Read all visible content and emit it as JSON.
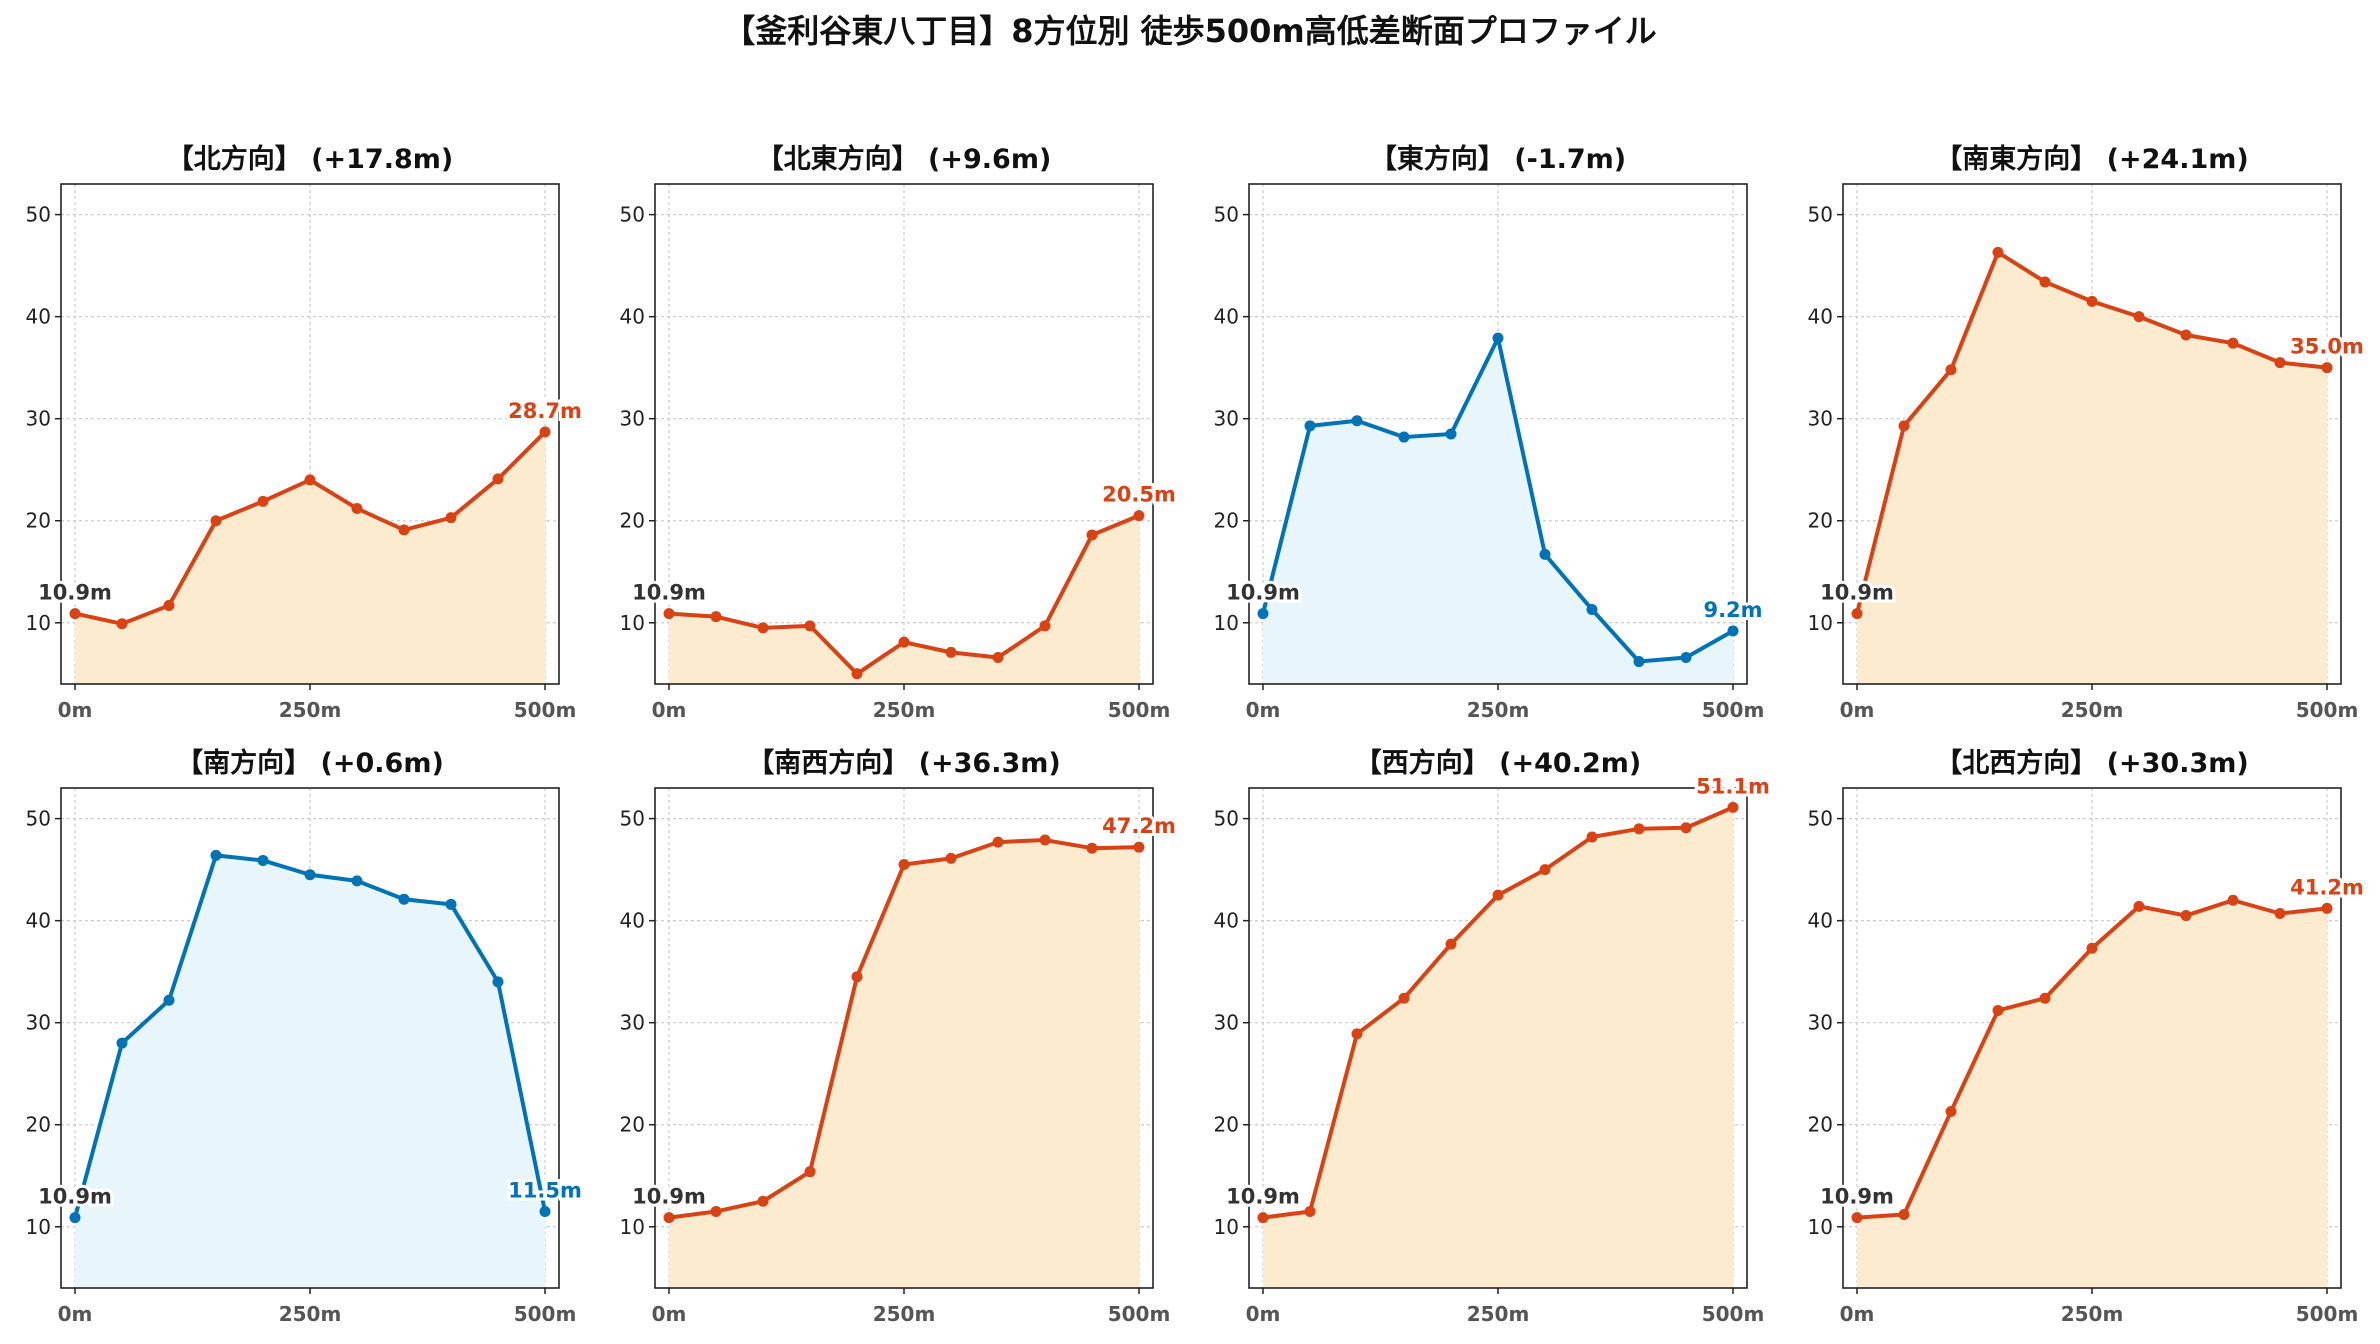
{
  "title": "【釜利谷東八丁目】8方位別 徒歩500m高低差断面プロファイル",
  "colors": {
    "up_line": "#d84315",
    "up_fill": "#fdebd0",
    "down_line": "#0073b7",
    "down_fill": "#e8f6fc",
    "start_label": "#333333",
    "grid": "#cccccc"
  },
  "chart_data": [
    {
      "type": "area",
      "title": "【北方向】 (+17.8m)",
      "trend": "up",
      "x": [
        0,
        50,
        100,
        150,
        200,
        250,
        300,
        350,
        400,
        450,
        500
      ],
      "values": [
        10.9,
        9.9,
        11.7,
        20.0,
        21.9,
        24.0,
        21.2,
        19.1,
        20.3,
        24.1,
        28.7
      ],
      "xticks": [
        "0m",
        "250m",
        "500m"
      ],
      "yticks": [
        "10",
        "20",
        "30",
        "40",
        "50"
      ],
      "start_label": "10.9m",
      "end_label": "28.7m",
      "xlim": [
        0,
        500
      ],
      "ylim": [
        4,
        53
      ],
      "grid": true
    },
    {
      "type": "area",
      "title": "【北東方向】 (+9.6m)",
      "trend": "up",
      "x": [
        0,
        50,
        100,
        150,
        200,
        250,
        300,
        350,
        400,
        450,
        500
      ],
      "values": [
        10.9,
        10.6,
        9.5,
        9.7,
        5.0,
        8.1,
        7.1,
        6.6,
        9.7,
        18.6,
        20.5
      ],
      "xticks": [
        "0m",
        "250m",
        "500m"
      ],
      "yticks": [
        "10",
        "20",
        "30",
        "40",
        "50"
      ],
      "start_label": "10.9m",
      "end_label": "20.5m",
      "xlim": [
        0,
        500
      ],
      "ylim": [
        4,
        53
      ],
      "grid": true
    },
    {
      "type": "area",
      "title": "【東方向】 (-1.7m)",
      "trend": "down",
      "x": [
        0,
        50,
        100,
        150,
        200,
        250,
        300,
        350,
        400,
        450,
        500
      ],
      "values": [
        10.9,
        29.3,
        29.8,
        28.2,
        28.5,
        37.9,
        16.7,
        11.3,
        6.2,
        6.6,
        9.2
      ],
      "xticks": [
        "0m",
        "250m",
        "500m"
      ],
      "yticks": [
        "10",
        "20",
        "30",
        "40",
        "50"
      ],
      "start_label": "10.9m",
      "end_label": "9.2m",
      "xlim": [
        0,
        500
      ],
      "ylim": [
        4,
        53
      ],
      "grid": true
    },
    {
      "type": "area",
      "title": "【南東方向】 (+24.1m)",
      "trend": "up",
      "x": [
        0,
        50,
        100,
        150,
        200,
        250,
        300,
        350,
        400,
        450,
        500
      ],
      "values": [
        10.9,
        29.3,
        34.8,
        46.3,
        43.4,
        41.5,
        40.0,
        38.2,
        37.4,
        35.5,
        35.0
      ],
      "xticks": [
        "0m",
        "250m",
        "500m"
      ],
      "yticks": [
        "10",
        "20",
        "30",
        "40",
        "50"
      ],
      "start_label": "10.9m",
      "end_label": "35.0m",
      "xlim": [
        0,
        500
      ],
      "ylim": [
        4,
        53
      ],
      "grid": true
    },
    {
      "type": "area",
      "title": "【南方向】 (+0.6m)",
      "trend": "down",
      "x": [
        0,
        50,
        100,
        150,
        200,
        250,
        300,
        350,
        400,
        450,
        500
      ],
      "values": [
        10.9,
        28.0,
        32.2,
        46.4,
        45.9,
        44.5,
        43.9,
        42.1,
        41.6,
        34.0,
        11.5
      ],
      "xticks": [
        "0m",
        "250m",
        "500m"
      ],
      "yticks": [
        "10",
        "20",
        "30",
        "40",
        "50"
      ],
      "start_label": "10.9m",
      "end_label": "11.5m",
      "xlim": [
        0,
        500
      ],
      "ylim": [
        4,
        53
      ],
      "grid": true
    },
    {
      "type": "area",
      "title": "【南西方向】 (+36.3m)",
      "trend": "up",
      "x": [
        0,
        50,
        100,
        150,
        200,
        250,
        300,
        350,
        400,
        450,
        500
      ],
      "values": [
        10.9,
        11.5,
        12.5,
        15.4,
        34.5,
        45.5,
        46.1,
        47.7,
        47.9,
        47.1,
        47.2
      ],
      "xticks": [
        "0m",
        "250m",
        "500m"
      ],
      "yticks": [
        "10",
        "20",
        "30",
        "40",
        "50"
      ],
      "start_label": "10.9m",
      "end_label": "47.2m",
      "xlim": [
        0,
        500
      ],
      "ylim": [
        4,
        53
      ],
      "grid": true
    },
    {
      "type": "area",
      "title": "【西方向】 (+40.2m)",
      "trend": "up",
      "x": [
        0,
        50,
        100,
        150,
        200,
        250,
        300,
        350,
        400,
        450,
        500
      ],
      "values": [
        10.9,
        11.5,
        28.9,
        32.4,
        37.7,
        42.5,
        45.0,
        48.2,
        49.0,
        49.1,
        51.1
      ],
      "xticks": [
        "0m",
        "250m",
        "500m"
      ],
      "yticks": [
        "10",
        "20",
        "30",
        "40",
        "50"
      ],
      "start_label": "10.9m",
      "end_label": "51.1m",
      "xlim": [
        0,
        500
      ],
      "ylim": [
        4,
        53
      ],
      "grid": true
    },
    {
      "type": "area",
      "title": "【北西方向】 (+30.3m)",
      "trend": "up",
      "x": [
        0,
        50,
        100,
        150,
        200,
        250,
        300,
        350,
        400,
        450,
        500
      ],
      "values": [
        10.9,
        11.2,
        21.3,
        31.2,
        32.4,
        37.3,
        41.4,
        40.5,
        42.0,
        40.7,
        41.2
      ],
      "xticks": [
        "0m",
        "250m",
        "500m"
      ],
      "yticks": [
        "10",
        "20",
        "30",
        "40",
        "50"
      ],
      "start_label": "10.9m",
      "end_label": "41.2m",
      "xlim": [
        0,
        500
      ],
      "ylim": [
        4,
        53
      ],
      "grid": true
    }
  ]
}
